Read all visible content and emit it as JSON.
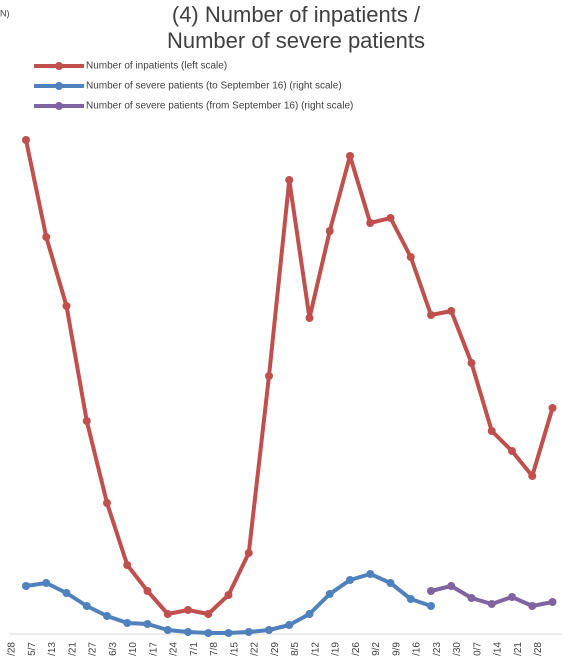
{
  "chart_data": {
    "type": "line",
    "corner_text": "N)",
    "title": "(4) Number of inpatients /",
    "subtitle": "Number of severe patients",
    "categories": [
      "/28",
      "5/7",
      "/13",
      "/21",
      "/27",
      "6/3",
      "/10",
      "/17",
      "/24",
      "7/1",
      "7/8",
      "/15",
      "/22",
      "/29",
      "8/5",
      "/12",
      "/19",
      "/26",
      "9/2",
      "9/9",
      "/16",
      "/23",
      "/30",
      "0/7",
      "/14",
      "/21",
      "/28"
    ],
    "ylim": [
      0,
      100
    ],
    "y2lim": [
      0,
      100
    ],
    "legend": "top-left",
    "series": [
      {
        "name": "Number of inpatients (left scale)",
        "color": "#c0504d",
        "values": [
          98.8,
          79.4,
          65.6,
          42.6,
          26.2,
          13.8,
          8.6,
          4,
          4.8,
          4,
          7.8,
          16.2,
          51.6,
          90.8,
          63.2,
          80.6,
          95.6,
          82.2,
          83.2,
          75.4,
          63.8,
          64.6,
          54.2,
          40.6,
          36.6,
          31.6,
          45.2
        ]
      },
      {
        "name": "Number of severe patients (to September 16) (right scale)",
        "color": "#4f81bd",
        "axis": "y2",
        "values": [
          9.6,
          10.2,
          8.2,
          5.6,
          3.6,
          2.2,
          2,
          0.8,
          0.4,
          0.2,
          0.2,
          0.4,
          0.8,
          1.8,
          4,
          8,
          10.8,
          12,
          10.2,
          7,
          5.6,
          null,
          null,
          null,
          null,
          null,
          null
        ]
      },
      {
        "name": "Number of severe patients (from September 16) (right scale)",
        "color": "#8064a2",
        "axis": "y2",
        "values": [
          null,
          null,
          null,
          null,
          null,
          null,
          null,
          null,
          null,
          null,
          null,
          null,
          null,
          null,
          null,
          null,
          null,
          null,
          null,
          null,
          8.6,
          9.6,
          7.2,
          6,
          7.4,
          5.6,
          6.4
        ]
      }
    ]
  }
}
